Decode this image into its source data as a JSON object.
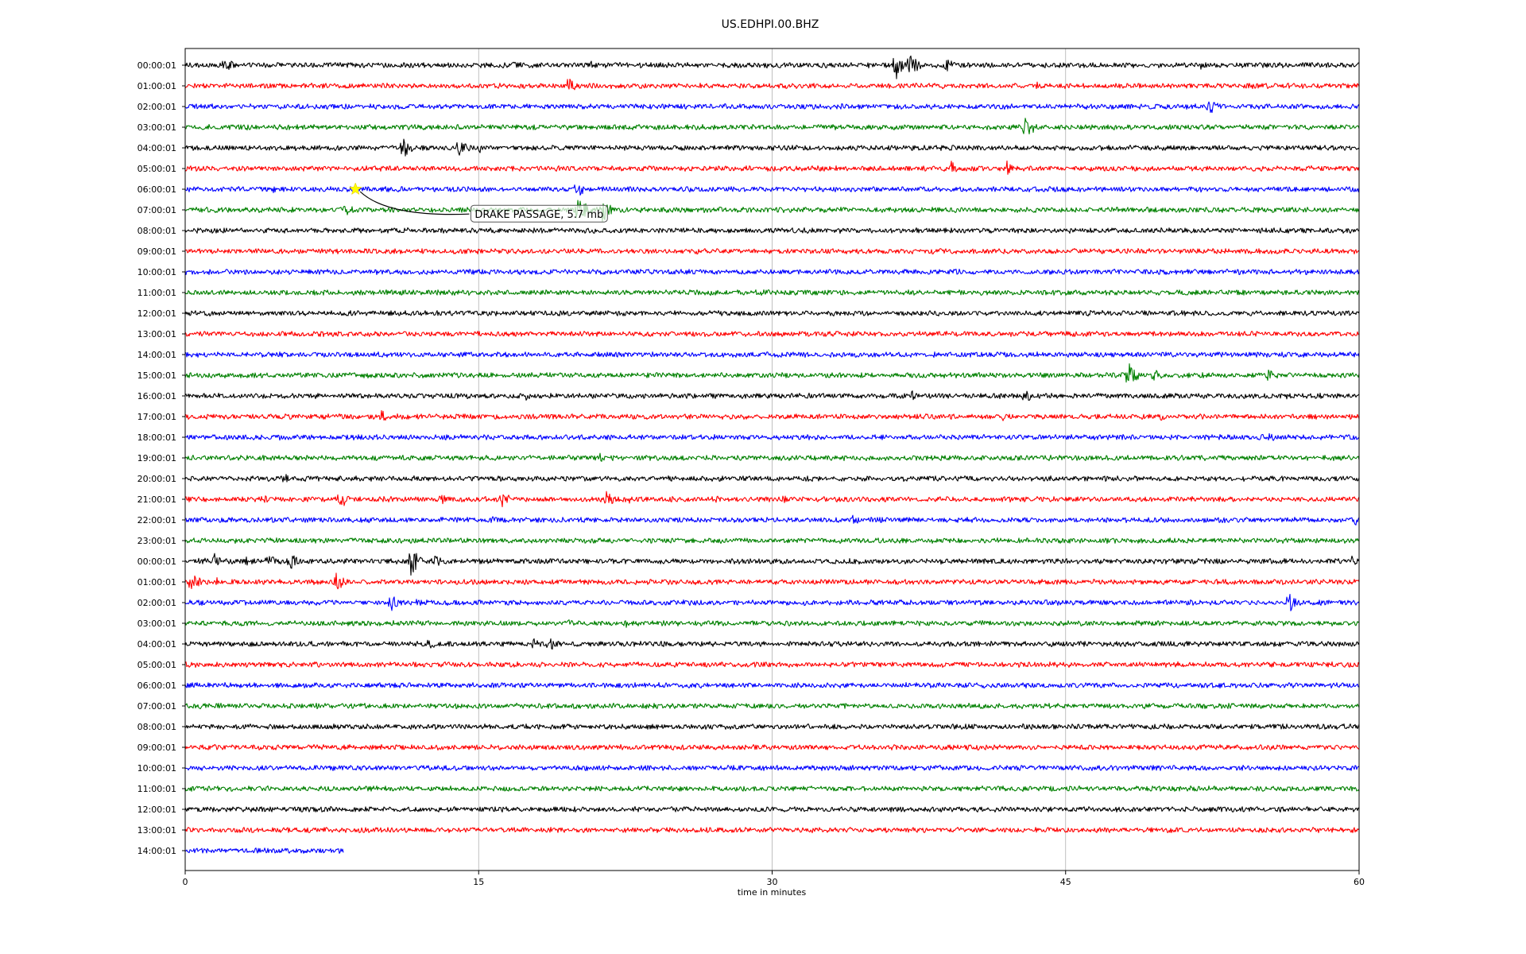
{
  "chart_data": {
    "type": "line",
    "title": "US.EDHPI.00.BHZ",
    "xlabel": "time in minutes",
    "ylabel": "",
    "xlim": [
      0,
      60
    ],
    "xticks": [
      0,
      15,
      30,
      45,
      60
    ],
    "grid": "vertical gridlines at 15, 30, 45",
    "colors": [
      "#000000",
      "#ff0000",
      "#0000ff",
      "#008000"
    ],
    "row_labels": [
      "00:00:01",
      "01:00:01",
      "02:00:01",
      "03:00:01",
      "04:00:01",
      "05:00:01",
      "06:00:01",
      "07:00:01",
      "08:00:01",
      "09:00:01",
      "10:00:01",
      "11:00:01",
      "12:00:01",
      "13:00:01",
      "14:00:01",
      "15:00:01",
      "16:00:01",
      "17:00:01",
      "18:00:01",
      "19:00:01",
      "20:00:01",
      "21:00:01",
      "22:00:01",
      "23:00:01",
      "00:00:01",
      "01:00:01",
      "02:00:01",
      "03:00:01",
      "04:00:01",
      "05:00:01",
      "06:00:01",
      "07:00:01",
      "08:00:01",
      "09:00:01",
      "10:00:01",
      "11:00:01",
      "12:00:01",
      "13:00:01",
      "14:00:01"
    ],
    "last_row_end_minutes": 8.1,
    "events": [
      {
        "row": 0,
        "t": [
          2.0,
          16.6,
          20.7,
          36.3,
          37.0,
          38.9,
          51.9
        ],
        "a": [
          12,
          8,
          6,
          22,
          20,
          12,
          6
        ]
      },
      {
        "row": 1,
        "t": [
          19.5,
          43.5
        ],
        "a": [
          14,
          6
        ]
      },
      {
        "row": 2,
        "t": [
          52.3
        ],
        "a": [
          14
        ]
      },
      {
        "row": 3,
        "t": [
          42.9
        ],
        "a": [
          20
        ]
      },
      {
        "row": 4,
        "t": [
          11.1,
          14.0,
          15.0
        ],
        "a": [
          18,
          14,
          8
        ]
      },
      {
        "row": 5,
        "t": [
          39.1,
          42.0
        ],
        "a": [
          14,
          10
        ]
      },
      {
        "row": 6,
        "t": [
          4.5,
          20.0
        ],
        "a": [
          6,
          12
        ]
      },
      {
        "row": 7,
        "t": [
          8.2,
          20.0,
          21.3
        ],
        "a": [
          10,
          26,
          18
        ]
      },
      {
        "row": 15,
        "t": [
          48.2,
          49.5,
          55.3
        ],
        "a": [
          18,
          10,
          10
        ]
      },
      {
        "row": 16,
        "t": [
          17.4,
          37.1,
          42.9,
          56.2
        ],
        "a": [
          6,
          8,
          10,
          6
        ]
      },
      {
        "row": 17,
        "t": [
          10.0,
          41.8,
          49.8
        ],
        "a": [
          10,
          6,
          6
        ]
      },
      {
        "row": 18,
        "t": [
          55.4
        ],
        "a": [
          8
        ]
      },
      {
        "row": 19,
        "t": [
          21.2
        ],
        "a": [
          6
        ]
      },
      {
        "row": 20,
        "t": [
          5.0,
          7.7
        ],
        "a": [
          10,
          6
        ]
      },
      {
        "row": 21,
        "t": [
          4.0,
          7.9,
          10.2,
          13.1,
          16.2,
          21.5,
          22.6,
          27.0,
          30.5
        ],
        "a": [
          6,
          14,
          8,
          8,
          12,
          12,
          8,
          8,
          6
        ]
      },
      {
        "row": 22,
        "t": [
          15.7,
          34.1,
          59.7
        ],
        "a": [
          6,
          8,
          10
        ]
      },
      {
        "row": 24,
        "t": [
          0.8,
          1.5,
          3.1,
          4.2,
          5.3,
          11.5,
          12.7,
          33.8,
          59.6
        ],
        "a": [
          8,
          12,
          10,
          12,
          14,
          22,
          10,
          6,
          8
        ]
      },
      {
        "row": 25,
        "t": [
          0.3,
          1.5,
          7.7
        ],
        "a": [
          16,
          8,
          14
        ]
      },
      {
        "row": 26,
        "t": [
          10.5,
          11.8,
          56.4
        ],
        "a": [
          12,
          8,
          14
        ]
      },
      {
        "row": 27,
        "t": [
          19.4,
          22.5
        ],
        "a": [
          8,
          6
        ]
      },
      {
        "row": 28,
        "t": [
          12.5,
          17.8,
          18.6
        ],
        "a": [
          10,
          10,
          10
        ]
      }
    ],
    "annotation": {
      "text": "DRAKE PASSAGE, 5.7 mb",
      "row": 6,
      "t": 8.7,
      "label_row": 7.2,
      "label_t": 14.6,
      "marker_color": "#ffff00"
    }
  }
}
